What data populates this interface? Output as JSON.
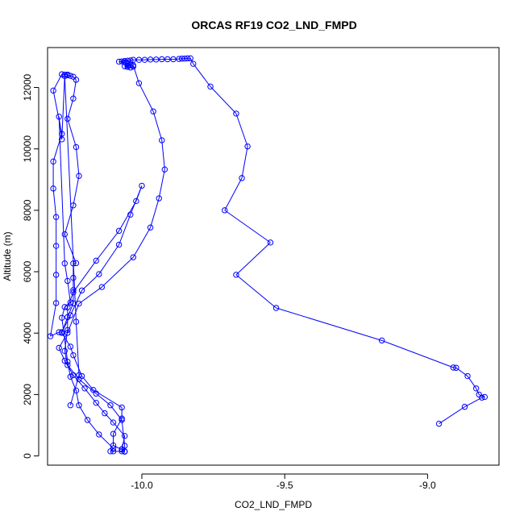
{
  "chart_data": {
    "type": "line",
    "title": "ORCAS RF19 CO2_LND_FMPD",
    "xlabel": "CO2_LND_FMPD",
    "ylabel": "Altitude (m)",
    "xlim": [
      -10.33,
      -8.75
    ],
    "ylim": [
      -300,
      13300
    ],
    "x_ticks": [
      -10.0,
      -9.5,
      -9.0
    ],
    "x_tick_labels": [
      "-10.0",
      "-9.5",
      "-9.0"
    ],
    "y_ticks": [
      0,
      2000,
      4000,
      6000,
      8000,
      10000,
      12000
    ],
    "y_tick_labels": [
      "0",
      "2000",
      "4000",
      "6000",
      "8000",
      "10000",
      "12000"
    ],
    "grid": false,
    "legend": "none",
    "marker": "open-circle",
    "color": "#0000ff",
    "series": [
      {
        "points": [
          [
            -8.96,
            1050
          ],
          [
            -8.87,
            1600
          ],
          [
            -8.81,
            1900
          ],
          [
            -8.8,
            1920
          ],
          [
            -8.82,
            2000
          ],
          [
            -8.83,
            2200
          ],
          [
            -8.86,
            2600
          ],
          [
            -8.9,
            2870
          ],
          [
            -8.91,
            2880
          ],
          [
            -9.16,
            3760
          ],
          [
            -9.53,
            4820
          ],
          [
            -9.67,
            5900
          ],
          [
            -9.55,
            6950
          ],
          [
            -9.71,
            8000
          ],
          [
            -9.65,
            9050
          ],
          [
            -9.63,
            10080
          ],
          [
            -9.67,
            11150
          ],
          [
            -9.76,
            12030
          ],
          [
            -9.82,
            12770
          ],
          [
            -9.83,
            12950
          ],
          [
            -9.84,
            12950
          ],
          [
            -9.85,
            12940
          ],
          [
            -9.86,
            12940
          ],
          [
            -9.87,
            12930
          ],
          [
            -9.89,
            12920
          ],
          [
            -9.91,
            12920
          ],
          [
            -9.93,
            12920
          ],
          [
            -9.95,
            12910
          ],
          [
            -9.97,
            12910
          ],
          [
            -9.99,
            12900
          ],
          [
            -10.01,
            12900
          ],
          [
            -10.03,
            12900
          ],
          [
            -10.04,
            12880
          ],
          [
            -10.05,
            12870
          ],
          [
            -10.06,
            12860
          ],
          [
            -10.07,
            12850
          ],
          [
            -10.08,
            12840
          ],
          [
            -10.06,
            12820
          ],
          [
            -10.05,
            12780
          ],
          [
            -10.04,
            12740
          ],
          [
            -10.05,
            12710
          ],
          [
            -10.06,
            12690
          ],
          [
            -10.05,
            12670
          ],
          [
            -10.04,
            12650
          ],
          [
            -10.03,
            12680
          ],
          [
            -10.03,
            12720
          ],
          [
            -10.01,
            12140
          ],
          [
            -9.96,
            11220
          ],
          [
            -9.93,
            10280
          ],
          [
            -9.92,
            9330
          ],
          [
            -9.94,
            8390
          ],
          [
            -9.97,
            7440
          ],
          [
            -10.03,
            6470
          ],
          [
            -10.14,
            5500
          ],
          [
            -10.22,
            4960
          ],
          [
            -10.26,
            4010
          ],
          [
            -10.29,
            3520
          ],
          [
            -10.27,
            3100
          ],
          [
            -10.24,
            2630
          ],
          [
            -10.2,
            2200
          ],
          [
            -10.16,
            1730
          ],
          [
            -10.13,
            1390
          ],
          [
            -10.1,
            1090
          ],
          [
            -10.06,
            650
          ],
          [
            -10.07,
            220
          ],
          [
            -10.07,
            150
          ],
          [
            -10.06,
            140
          ],
          [
            -10.07,
            210
          ],
          [
            -10.1,
            340
          ],
          [
            -10.1,
            720
          ],
          [
            -10.07,
            1220
          ],
          [
            -10.07,
            1580
          ],
          [
            -10.17,
            2150
          ],
          [
            -10.21,
            2600
          ],
          [
            -10.24,
            3280
          ],
          [
            -10.25,
            3560
          ],
          [
            -10.28,
            4010
          ],
          [
            -10.26,
            4520
          ],
          [
            -10.24,
            4970
          ],
          [
            -10.24,
            5400
          ],
          [
            -10.24,
            5800
          ],
          [
            -10.24,
            6270
          ],
          [
            -10.23,
            6280
          ],
          [
            -10.27,
            7220
          ],
          [
            -10.24,
            8160
          ],
          [
            -10.22,
            9120
          ],
          [
            -10.23,
            10060
          ],
          [
            -10.26,
            10980
          ],
          [
            -10.24,
            11640
          ],
          [
            -10.23,
            12250
          ],
          [
            -10.24,
            12350
          ],
          [
            -10.25,
            12380
          ],
          [
            -10.26,
            12400
          ],
          [
            -10.26,
            12420
          ],
          [
            -10.27,
            12420
          ],
          [
            -10.28,
            12430
          ],
          [
            -10.31,
            11900
          ],
          [
            -10.28,
            10490
          ],
          [
            -10.31,
            9590
          ],
          [
            -10.31,
            8710
          ],
          [
            -10.3,
            7780
          ],
          [
            -10.3,
            6840
          ],
          [
            -10.3,
            5900
          ],
          [
            -10.3,
            4980
          ],
          [
            -10.32,
            3900
          ],
          [
            -10.29,
            4030
          ],
          [
            -10.28,
            4030
          ],
          [
            -10.25,
            4580
          ],
          [
            -10.21,
            5390
          ],
          [
            -10.15,
            5920
          ],
          [
            -10.08,
            6880
          ],
          [
            -10.04,
            7860
          ],
          [
            -10.0,
            8800
          ],
          [
            -10.02,
            8300
          ],
          [
            -10.08,
            7330
          ],
          [
            -10.16,
            6360
          ],
          [
            -10.24,
            5330
          ],
          [
            -10.26,
            4840
          ],
          [
            -10.26,
            4100
          ],
          [
            -10.27,
            3420
          ],
          [
            -10.26,
            2960
          ],
          [
            -10.22,
            2500
          ],
          [
            -10.16,
            2030
          ],
          [
            -10.11,
            1650
          ],
          [
            -10.07,
            1170
          ],
          [
            -10.06,
            330
          ],
          [
            -10.06,
            150
          ],
          [
            -10.1,
            150
          ],
          [
            -10.11,
            150
          ],
          [
            -10.1,
            250
          ],
          [
            -10.15,
            700
          ],
          [
            -10.19,
            1170
          ],
          [
            -10.22,
            1650
          ],
          [
            -10.23,
            2130
          ],
          [
            -10.25,
            2580
          ],
          [
            -10.26,
            3070
          ],
          [
            -10.28,
            4500
          ],
          [
            -10.27,
            4850
          ],
          [
            -10.25,
            5000
          ],
          [
            -10.26,
            5700
          ],
          [
            -10.27,
            6270
          ],
          [
            -10.29,
            11050
          ],
          [
            -10.28,
            10310
          ],
          [
            -10.27,
            12370
          ],
          [
            -10.23,
            4370
          ],
          [
            -10.22,
            2630
          ],
          [
            -10.25,
            1650
          ]
        ]
      }
    ]
  }
}
